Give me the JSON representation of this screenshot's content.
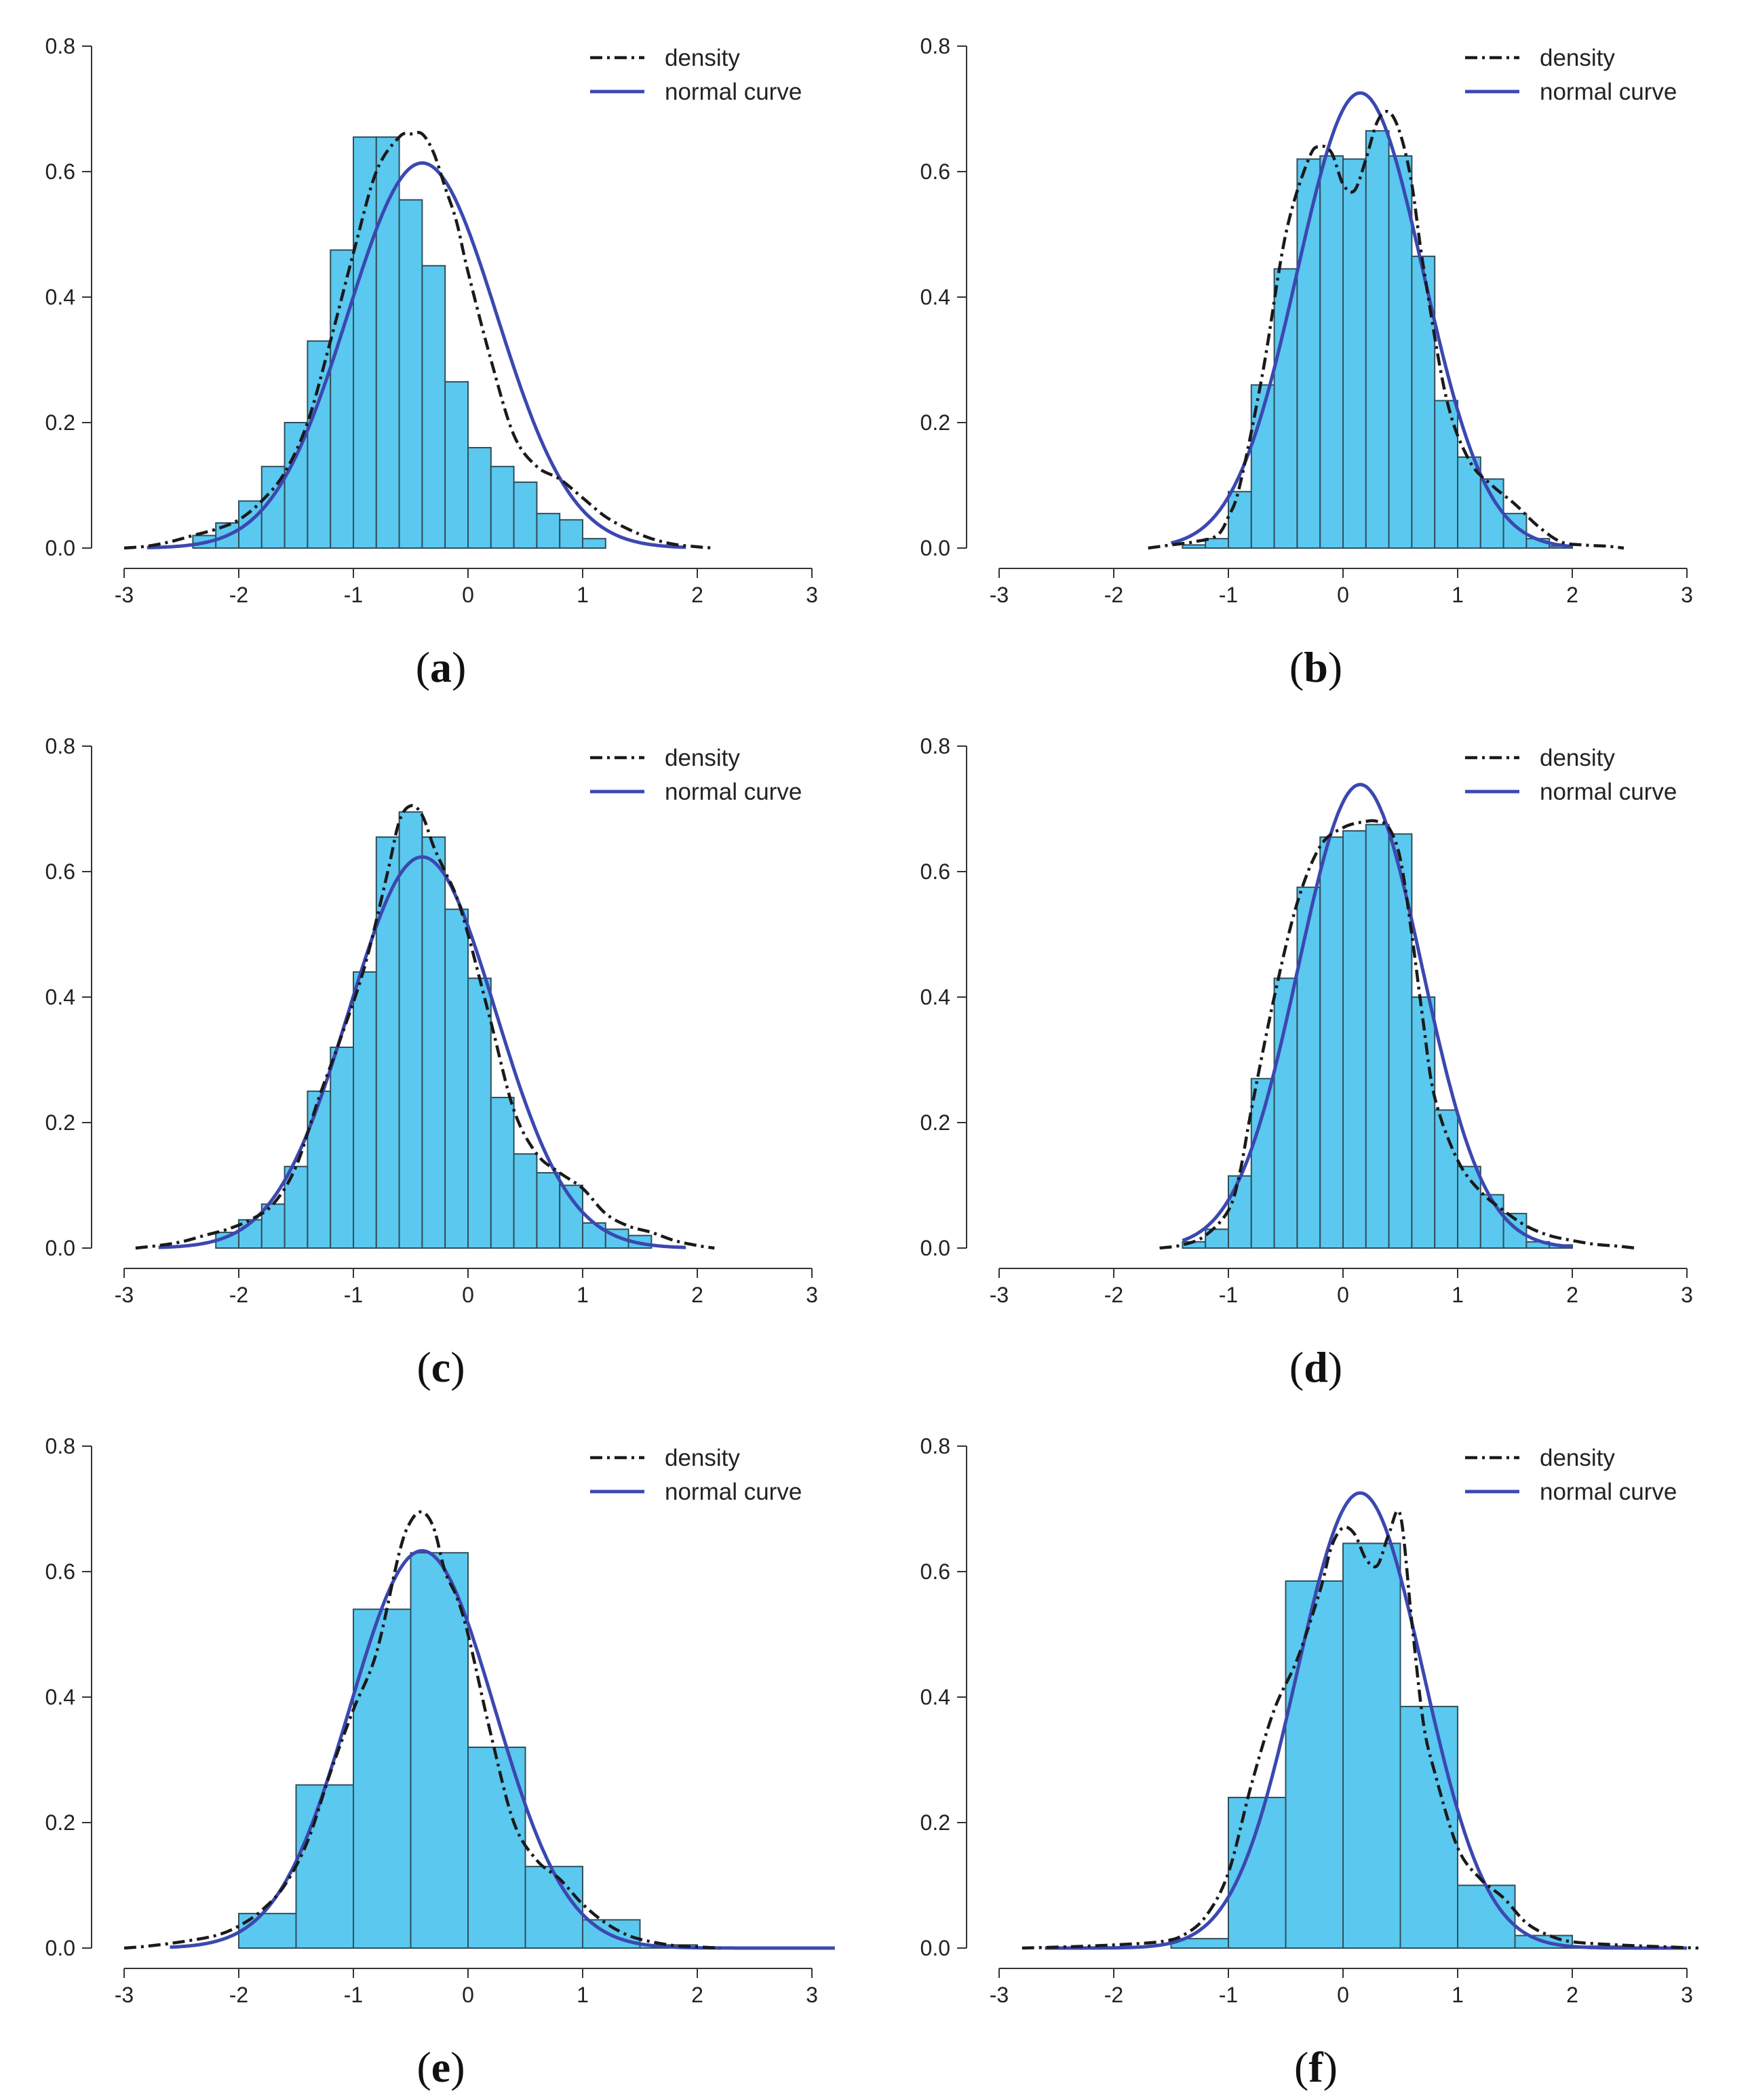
{
  "colors": {
    "bar": "#5bc8ef",
    "normal_curve": "#3b48b0",
    "density": "#1a1a1a",
    "bar_edge": "#2f4f5c"
  },
  "chart_data": [
    {
      "id": "a",
      "panel_label": "a",
      "type": "histogram",
      "xlim": [
        -3,
        3
      ],
      "ylim": [
        0,
        0.8
      ],
      "xticks": [
        "-3",
        "-2",
        "-1",
        "0",
        "1",
        "2",
        "3"
      ],
      "yticks": [
        "0.0",
        "0.2",
        "0.4",
        "0.6",
        "0.8"
      ],
      "legend": [
        "density",
        "normal curve"
      ],
      "legend_position": "top-right",
      "bin_start": -2.4,
      "bin_width": 0.2,
      "bar_values": [
        0.02,
        0.04,
        0.075,
        0.13,
        0.2,
        0.33,
        0.475,
        0.655,
        0.655,
        0.555,
        0.45,
        0.265,
        0.16,
        0.13,
        0.105,
        0.055,
        0.045,
        0.015
      ],
      "normal": {
        "mean": -0.4,
        "sd": 0.65,
        "range": [
          -2.8,
          1.9
        ]
      },
      "density": {
        "x": [
          -3.0,
          -2.8,
          -2.6,
          -2.4,
          -2.2,
          -2.0,
          -1.8,
          -1.6,
          -1.4,
          -1.2,
          -1.0,
          -0.8,
          -0.6,
          -0.5,
          -0.4,
          -0.3,
          -0.2,
          -0.1,
          0.0,
          0.2,
          0.4,
          0.6,
          0.8,
          1.0,
          1.2,
          1.4,
          1.6,
          1.8,
          2.0,
          2.15
        ],
        "y": [
          0.0,
          0.003,
          0.01,
          0.02,
          0.03,
          0.045,
          0.075,
          0.12,
          0.2,
          0.33,
          0.47,
          0.6,
          0.655,
          0.66,
          0.66,
          0.63,
          0.575,
          0.52,
          0.44,
          0.3,
          0.18,
          0.13,
          0.11,
          0.08,
          0.05,
          0.03,
          0.015,
          0.006,
          0.002,
          0.0
        ]
      }
    },
    {
      "id": "b",
      "panel_label": "b",
      "type": "histogram",
      "xlim": [
        -3,
        3
      ],
      "ylim": [
        0,
        0.8
      ],
      "xticks": [
        "-3",
        "-2",
        "-1",
        "0",
        "1",
        "2",
        "3"
      ],
      "yticks": [
        "0.0",
        "0.2",
        "0.4",
        "0.6",
        "0.8"
      ],
      "legend": [
        "density",
        "normal curve"
      ],
      "legend_position": "top-right",
      "bin_start": -1.4,
      "bin_width": 0.2,
      "bar_values": [
        0.005,
        0.015,
        0.09,
        0.26,
        0.445,
        0.62,
        0.625,
        0.62,
        0.665,
        0.625,
        0.465,
        0.235,
        0.145,
        0.11,
        0.055,
        0.015,
        0.003
      ],
      "normal": {
        "mean": 0.15,
        "sd": 0.55,
        "range": [
          -1.5,
          2.0
        ]
      },
      "density": {
        "x": [
          -1.7,
          -1.5,
          -1.3,
          -1.1,
          -1.0,
          -0.9,
          -0.7,
          -0.5,
          -0.3,
          -0.2,
          -0.1,
          0.0,
          0.1,
          0.2,
          0.3,
          0.4,
          0.5,
          0.6,
          0.7,
          0.9,
          1.1,
          1.3,
          1.5,
          1.7,
          1.9,
          2.1,
          2.3,
          2.45
        ],
        "y": [
          0.0,
          0.005,
          0.01,
          0.02,
          0.05,
          0.1,
          0.28,
          0.5,
          0.62,
          0.64,
          0.63,
          0.58,
          0.57,
          0.62,
          0.68,
          0.695,
          0.66,
          0.58,
          0.45,
          0.24,
          0.14,
          0.1,
          0.07,
          0.035,
          0.01,
          0.005,
          0.003,
          0.0
        ]
      }
    },
    {
      "id": "c",
      "panel_label": "c",
      "type": "histogram",
      "xlim": [
        -3,
        3
      ],
      "ylim": [
        0,
        0.8
      ],
      "xticks": [
        "-3",
        "-2",
        "-1",
        "0",
        "1",
        "2",
        "3"
      ],
      "yticks": [
        "0.0",
        "0.2",
        "0.4",
        "0.6",
        "0.8"
      ],
      "legend": [
        "density",
        "normal curve"
      ],
      "legend_position": "top-right",
      "bin_start": -2.2,
      "bin_width": 0.2,
      "bar_values": [
        0.025,
        0.045,
        0.07,
        0.13,
        0.25,
        0.32,
        0.44,
        0.655,
        0.695,
        0.655,
        0.54,
        0.43,
        0.24,
        0.15,
        0.12,
        0.1,
        0.04,
        0.03,
        0.02
      ],
      "normal": {
        "mean": -0.4,
        "sd": 0.64,
        "range": [
          -2.7,
          1.9
        ]
      },
      "density": {
        "x": [
          -2.9,
          -2.7,
          -2.5,
          -2.3,
          -2.1,
          -1.9,
          -1.7,
          -1.5,
          -1.3,
          -1.1,
          -0.9,
          -0.7,
          -0.6,
          -0.5,
          -0.4,
          -0.3,
          -0.2,
          -0.1,
          0.0,
          0.2,
          0.4,
          0.6,
          0.8,
          1.0,
          1.2,
          1.4,
          1.6,
          1.8,
          2.0,
          2.15
        ],
        "y": [
          0.0,
          0.004,
          0.01,
          0.02,
          0.03,
          0.045,
          0.07,
          0.13,
          0.24,
          0.34,
          0.45,
          0.6,
          0.68,
          0.705,
          0.69,
          0.64,
          0.6,
          0.56,
          0.5,
          0.36,
          0.22,
          0.15,
          0.12,
          0.095,
          0.055,
          0.035,
          0.025,
          0.012,
          0.004,
          0.0
        ]
      }
    },
    {
      "id": "d",
      "panel_label": "d",
      "type": "histogram",
      "xlim": [
        -3,
        3
      ],
      "ylim": [
        0,
        0.8
      ],
      "xticks": [
        "-3",
        "-2",
        "-1",
        "0",
        "1",
        "2",
        "3"
      ],
      "yticks": [
        "0.0",
        "0.2",
        "0.4",
        "0.6",
        "0.8"
      ],
      "legend": [
        "density",
        "normal curve"
      ],
      "legend_position": "top-right",
      "bin_start": -1.4,
      "bin_width": 0.2,
      "bar_values": [
        0.01,
        0.03,
        0.115,
        0.27,
        0.43,
        0.575,
        0.655,
        0.665,
        0.675,
        0.66,
        0.4,
        0.22,
        0.13,
        0.085,
        0.055,
        0.01,
        0.005
      ],
      "normal": {
        "mean": 0.15,
        "sd": 0.54,
        "range": [
          -1.4,
          2.0
        ]
      },
      "density": {
        "x": [
          -1.6,
          -1.4,
          -1.2,
          -1.0,
          -0.9,
          -0.8,
          -0.6,
          -0.4,
          -0.2,
          0.0,
          0.2,
          0.3,
          0.4,
          0.5,
          0.6,
          0.7,
          0.8,
          1.0,
          1.2,
          1.4,
          1.6,
          1.8,
          2.0,
          2.2,
          2.4,
          2.55
        ],
        "y": [
          0.0,
          0.005,
          0.02,
          0.06,
          0.12,
          0.22,
          0.4,
          0.55,
          0.64,
          0.67,
          0.68,
          0.68,
          0.67,
          0.62,
          0.5,
          0.36,
          0.24,
          0.14,
          0.09,
          0.06,
          0.035,
          0.02,
          0.012,
          0.006,
          0.003,
          0.0
        ]
      }
    },
    {
      "id": "e",
      "panel_label": "e",
      "type": "histogram",
      "xlim": [
        -3,
        3
      ],
      "ylim": [
        0,
        0.8
      ],
      "xticks": [
        "-3",
        "-2",
        "-1",
        "0",
        "1",
        "2",
        "3"
      ],
      "yticks": [
        "0.0",
        "0.2",
        "0.4",
        "0.6",
        "0.8"
      ],
      "legend": [
        "density",
        "normal curve"
      ],
      "legend_position": "top-right",
      "bin_start": -2.0,
      "bin_width": 0.5,
      "bar_values": [
        0.055,
        0.26,
        0.54,
        0.63,
        0.32,
        0.13,
        0.045,
        0.005
      ],
      "normal": {
        "mean": -0.4,
        "sd": 0.63,
        "range": [
          -2.6,
          3.2
        ]
      },
      "density": {
        "x": [
          -3.0,
          -2.8,
          -2.5,
          -2.2,
          -2.0,
          -1.8,
          -1.6,
          -1.4,
          -1.2,
          -1.0,
          -0.8,
          -0.6,
          -0.5,
          -0.4,
          -0.3,
          -0.2,
          -0.1,
          0.0,
          0.2,
          0.4,
          0.6,
          0.8,
          1.0,
          1.2,
          1.4,
          1.6,
          1.8,
          2.0,
          2.2
        ],
        "y": [
          0.0,
          0.003,
          0.01,
          0.02,
          0.035,
          0.06,
          0.1,
          0.17,
          0.28,
          0.38,
          0.47,
          0.63,
          0.68,
          0.695,
          0.67,
          0.6,
          0.56,
          0.5,
          0.34,
          0.2,
          0.14,
          0.11,
          0.07,
          0.04,
          0.02,
          0.01,
          0.004,
          0.002,
          0.0
        ]
      }
    },
    {
      "id": "f",
      "panel_label": "f",
      "type": "histogram",
      "xlim": [
        -3,
        3
      ],
      "ylim": [
        0,
        0.8
      ],
      "xticks": [
        "-3",
        "-2",
        "-1",
        "0",
        "1",
        "2",
        "3"
      ],
      "yticks": [
        "0.0",
        "0.2",
        "0.4",
        "0.6",
        "0.8"
      ],
      "legend": [
        "density",
        "normal curve"
      ],
      "legend_position": "top-right",
      "bin_start": -1.5,
      "bin_width": 0.5,
      "bar_values": [
        0.015,
        0.24,
        0.585,
        0.645,
        0.385,
        0.1,
        0.02,
        0.003
      ],
      "normal": {
        "mean": 0.15,
        "sd": 0.55,
        "range": [
          -2.6,
          3.0
        ]
      },
      "density": {
        "x": [
          -2.8,
          -2.4,
          -2.0,
          -1.6,
          -1.4,
          -1.2,
          -1.0,
          -0.8,
          -0.6,
          -0.4,
          -0.2,
          -0.1,
          0.0,
          0.1,
          0.2,
          0.3,
          0.4,
          0.5,
          0.6,
          0.7,
          0.8,
          1.0,
          1.2,
          1.4,
          1.6,
          1.8,
          2.0,
          2.4,
          2.8,
          3.1
        ],
        "y": [
          0.0,
          0.002,
          0.005,
          0.01,
          0.02,
          0.05,
          0.12,
          0.26,
          0.38,
          0.46,
          0.57,
          0.64,
          0.67,
          0.66,
          0.62,
          0.61,
          0.66,
          0.69,
          0.52,
          0.36,
          0.28,
          0.16,
          0.11,
          0.08,
          0.04,
          0.02,
          0.01,
          0.005,
          0.002,
          0.0
        ]
      }
    }
  ]
}
